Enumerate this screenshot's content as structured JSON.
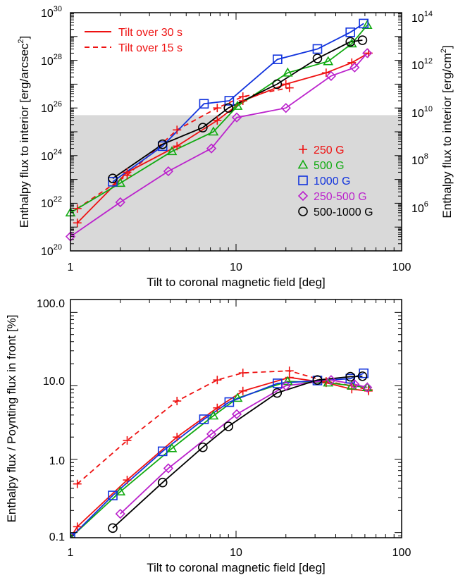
{
  "chart_data": [
    {
      "type": "line",
      "xlabel": "Tilt to coronal magnetic field [deg]",
      "ylabel": "Enthalpy flux to interior [erg/arcsec²]",
      "ylabel_right": "Enthalpy flux to interior [erg/cm²]",
      "xscale": "log",
      "yscale": "log",
      "xlim": [
        1,
        100
      ],
      "ylim": [
        1e+20,
        1e+30
      ],
      "ylim_right": [
        10000.0,
        100000000000000.0
      ],
      "x_ticks": [
        "1",
        "10",
        "100"
      ],
      "y_tick_exponents": [
        "20",
        "22",
        "24",
        "26",
        "28",
        "30"
      ],
      "y_right_tick_exponents": [
        "6",
        "8",
        "10",
        "12",
        "14"
      ],
      "shaded_region": {
        "y_min": 1e+20,
        "y_max": 5e+25
      },
      "linestyle_legend": [
        {
          "label": "Tilt over 30 s",
          "style": "solid"
        },
        {
          "label": "Tilt over 15 s",
          "style": "dashed"
        }
      ],
      "legend": [
        {
          "label": "250 G",
          "marker": "plus",
          "color": "#ee1111"
        },
        {
          "label": "500 G",
          "marker": "triangle",
          "color": "#11aa11"
        },
        {
          "label": "1000 G",
          "marker": "square",
          "color": "#1133dd"
        },
        {
          "label": "250-500 G",
          "marker": "diamond",
          "color": "#bb22cc"
        },
        {
          "label": "500-1000 G",
          "marker": "circle",
          "color": "#000000"
        }
      ],
      "series": [
        {
          "color": "#ee1111",
          "marker": "plus",
          "style": "solid",
          "x": [
            1.1,
            2.2,
            4.4,
            7.7,
            11,
            20,
            35,
            50,
            63
          ],
          "y": [
            1.5e+21,
            2e+23,
            2.5e+24,
            3e+25,
            2e+26,
            1e+27,
            3e+27,
            8e+27,
            2e+28
          ]
        },
        {
          "color": "#ee1111",
          "marker": "plus",
          "style": "dashed",
          "x": [
            1.1,
            2.2,
            4.4,
            7.7,
            11,
            21
          ],
          "y": [
            6e+21,
            1.5e+23,
            1.2e+25,
            1e+26,
            3e+26,
            7e+26
          ]
        },
        {
          "color": "#11aa11",
          "marker": "triangle",
          "style": "solid",
          "x": [
            1,
            2,
            4.1,
            7.3,
            10.2,
            20.5,
            36,
            50,
            62
          ],
          "y": [
            4e+21,
            7e+22,
            1.5e+24,
            1e+25,
            1.2e+26,
            3e+27,
            9e+27,
            5e+28,
            3e+29
          ]
        },
        {
          "color": "#1133dd",
          "marker": "square",
          "style": "solid",
          "x": [
            1.8,
            3.6,
            6.4,
            9.1,
            17.8,
            31,
            49,
            59
          ],
          "y": [
            8e+22,
            2.5e+24,
            1.5e+26,
            2e+26,
            1.1e+28,
            3e+28,
            1.5e+29,
            3.5e+29
          ]
        },
        {
          "color": "#bb22cc",
          "marker": "diamond",
          "style": "solid",
          "x": [
            1,
            2,
            3.9,
            7.1,
            10.1,
            20,
            37.5,
            52,
            62
          ],
          "y": [
            4e+20,
            1.1e+22,
            2.2e+23,
            2e+24,
            4e+25,
            1e+26,
            2.2e+27,
            5e+27,
            2e+28
          ]
        },
        {
          "color": "#000000",
          "marker": "circle",
          "style": "solid",
          "x": [
            1.8,
            3.6,
            6.3,
            9,
            17.7,
            31,
            49,
            58
          ],
          "y": [
            1.1e+23,
            3e+24,
            1.5e+25,
            1e+26,
            1e+27,
            1.2e+28,
            6e+28,
            7e+28
          ]
        }
      ]
    },
    {
      "type": "line",
      "xlabel": "Tilt to coronal magnetic field [deg]",
      "ylabel": "Enthalpy flux / Poynting flux in front [%]",
      "xscale": "log",
      "yscale": "log",
      "xlim": [
        1,
        100
      ],
      "ylim": [
        0.085,
        150
      ],
      "x_ticks": [
        "1",
        "10",
        "100"
      ],
      "y_ticks": [
        "0.1",
        "1.0",
        "10.0",
        "100.0"
      ],
      "series": [
        {
          "color": "#ee1111",
          "marker": "plus",
          "style": "solid",
          "x": [
            1,
            1.1,
            2.2,
            4.4,
            7.7,
            11,
            21,
            35,
            50,
            63
          ],
          "y": [
            0.085,
            0.12,
            0.52,
            2.0,
            5.0,
            8.5,
            13,
            11,
            9.0,
            8.5
          ]
        },
        {
          "color": "#ee1111",
          "marker": "plus",
          "style": "dashed",
          "x": [
            1.1,
            2.2,
            4.4,
            7.7,
            11,
            21,
            35,
            50,
            63
          ],
          "y": [
            0.46,
            1.8,
            6.2,
            12,
            15,
            16,
            11.5,
            10,
            8.8
          ]
        },
        {
          "color": "#11aa11",
          "marker": "triangle",
          "style": "solid",
          "x": [
            1,
            2,
            4.1,
            7.3,
            10.2,
            20.5,
            36,
            50,
            62
          ],
          "y": [
            0.085,
            0.36,
            1.4,
            3.9,
            6.8,
            11.5,
            11,
            10,
            9.5
          ]
        },
        {
          "color": "#1133dd",
          "marker": "square",
          "style": "solid",
          "x": [
            1,
            1.8,
            3.6,
            6.4,
            9.1,
            17.8,
            31,
            49,
            59
          ],
          "y": [
            0.085,
            0.32,
            1.28,
            3.5,
            6.0,
            10.8,
            11.8,
            12.5,
            14.8
          ]
        },
        {
          "color": "#bb22cc",
          "marker": "diamond",
          "style": "solid",
          "x": [
            2,
            3.9,
            7.1,
            10.1,
            20,
            37.5,
            52,
            62
          ],
          "y": [
            0.18,
            0.75,
            2.2,
            4.1,
            10,
            12,
            10.5,
            9.5
          ]
        },
        {
          "color": "#000000",
          "marker": "circle",
          "style": "solid",
          "x": [
            1.8,
            3.6,
            6.3,
            9,
            17.7,
            31,
            49,
            58
          ],
          "y": [
            0.115,
            0.48,
            1.45,
            2.8,
            8.0,
            12,
            13.3,
            13.5
          ]
        }
      ]
    }
  ]
}
